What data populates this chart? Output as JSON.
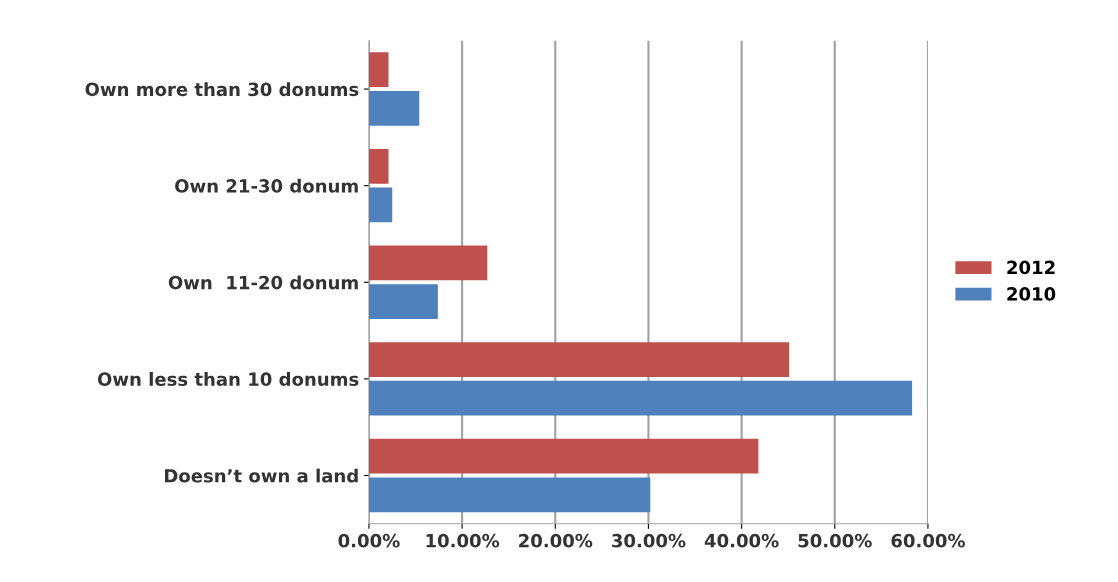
{
  "chart_data": {
    "type": "bar",
    "orientation": "horizontal",
    "categories": [
      "Own more than 30 donums",
      "Own 21-30 donum",
      "Own  11-20 donum",
      "Own less than 10 donums",
      "Doesn’t own a land"
    ],
    "series": [
      {
        "name": "2012",
        "color": "#c0504d",
        "values": [
          2.1,
          2.1,
          12.7,
          45.1,
          41.8
        ]
      },
      {
        "name": "2010",
        "color": "#4f81bd",
        "values": [
          5.4,
          2.5,
          7.4,
          58.3,
          30.2
        ]
      }
    ],
    "xlim": [
      0,
      60
    ],
    "xticks": [
      {
        "value": 0,
        "label": "0.00%"
      },
      {
        "value": 10,
        "label": "10.00%"
      },
      {
        "value": 20,
        "label": "20.00%"
      },
      {
        "value": 30,
        "label": "30.00%"
      },
      {
        "value": 40,
        "label": "40.00%"
      },
      {
        "value": 50,
        "label": "50.00%"
      },
      {
        "value": 60,
        "label": "60.00%"
      }
    ],
    "grid": "x",
    "legend": "right"
  }
}
